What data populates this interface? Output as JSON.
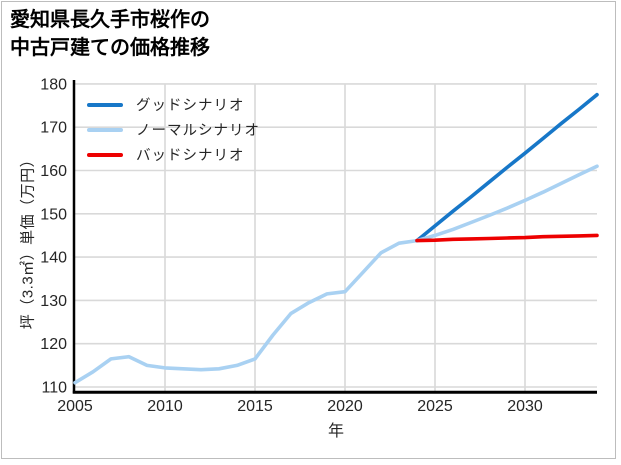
{
  "window": {
    "background": "#ffffff",
    "border_color": "#bdbdbd"
  },
  "title": {
    "line1": "愛知県長久手市桜作の",
    "line2": "中古戸建ての価格推移"
  },
  "chart_data": {
    "type": "line",
    "title": "愛知県長久手市桜作の中古戸建ての価格推移",
    "xlabel": "年",
    "ylabel": "坪（3.3㎡）単価（万円）",
    "x_ticks": [
      2005,
      2010,
      2015,
      2020,
      2025,
      2030
    ],
    "y_ticks": [
      110,
      120,
      130,
      140,
      150,
      160,
      170,
      180
    ],
    "xlim": [
      2005,
      2034
    ],
    "ylim": [
      108.8,
      181.2
    ],
    "grid": true,
    "legend_position": "top-left",
    "colors": {
      "grid": "#d9d9d9",
      "axis": "#000000",
      "tick_text": "#262626"
    },
    "series": [
      {
        "id": "price-history",
        "in_legend": false,
        "color": "#a9d1f2",
        "x": [
          2005,
          2006,
          2007,
          2008,
          2009,
          2010,
          2011,
          2012,
          2013,
          2014,
          2015,
          2016,
          2017,
          2018,
          2019,
          2020,
          2021,
          2022,
          2023,
          2024
        ],
        "values": [
          111.0,
          113.5,
          116.5,
          117.0,
          115.0,
          114.4,
          114.2,
          114.0,
          114.2,
          115.0,
          116.5,
          122.0,
          127.0,
          129.5,
          131.5,
          132.0,
          136.5,
          141.0,
          143.2,
          143.8
        ]
      },
      {
        "id": "good-scenario",
        "in_legend": true,
        "name": "グッドシナリオ",
        "color": "#1777c8",
        "x": [
          2024,
          2025,
          2026,
          2027,
          2028,
          2029,
          2030,
          2031,
          2032,
          2033,
          2034
        ],
        "values": [
          143.8,
          147.2,
          150.6,
          153.9,
          157.3,
          160.7,
          164.0,
          167.4,
          170.8,
          174.1,
          177.5
        ]
      },
      {
        "id": "normal-scenario",
        "in_legend": true,
        "name": "ノーマルシナリオ",
        "color": "#a9d1f2",
        "x": [
          2024,
          2025,
          2026,
          2027,
          2028,
          2029,
          2030,
          2031,
          2032,
          2033,
          2034
        ],
        "values": [
          143.8,
          145.0,
          146.4,
          148.0,
          149.6,
          151.3,
          153.1,
          155.0,
          157.0,
          159.0,
          161.0
        ]
      },
      {
        "id": "bad-scenario",
        "in_legend": true,
        "name": "バッドシナリオ",
        "color": "#ed0000",
        "x": [
          2024,
          2025,
          2026,
          2027,
          2028,
          2029,
          2030,
          2031,
          2032,
          2033,
          2034
        ],
        "values": [
          143.8,
          143.9,
          144.1,
          144.2,
          144.3,
          144.4,
          144.5,
          144.7,
          144.8,
          144.9,
          145.0
        ]
      }
    ]
  }
}
